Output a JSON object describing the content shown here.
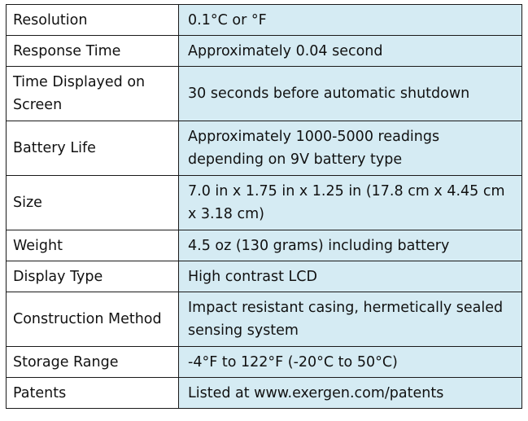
{
  "spec_table": {
    "rows": [
      {
        "label": "Resolution",
        "value": "0.1°C or °F"
      },
      {
        "label": "Response Time",
        "value": "Approximately 0.04 second"
      },
      {
        "label": "Time Displayed on Screen",
        "value": "30 seconds before automatic shutdown"
      },
      {
        "label": "Battery Life",
        "value": "Approximately 1000-5000 readings depending on 9V battery type"
      },
      {
        "label": "Size",
        "value": "7.0 in x 1.75 in x 1.25 in (17.8 cm x 4.45 cm x 3.18 cm)"
      },
      {
        "label": "Weight",
        "value": "4.5 oz (130 grams) including battery"
      },
      {
        "label": "Display Type",
        "value": "High contrast LCD"
      },
      {
        "label": "Construction Method",
        "value": "Impact resistant casing, hermetically sealed sensing system"
      },
      {
        "label": "Storage Range",
        "value": "-4°F to 122°F (-20°C to 50°C)"
      },
      {
        "label": "Patents",
        "value": "Listed at www.exergen.com/patents"
      }
    ]
  },
  "colors": {
    "value_cell_background": "#d5ebf3",
    "border": "#1a1a1a"
  }
}
